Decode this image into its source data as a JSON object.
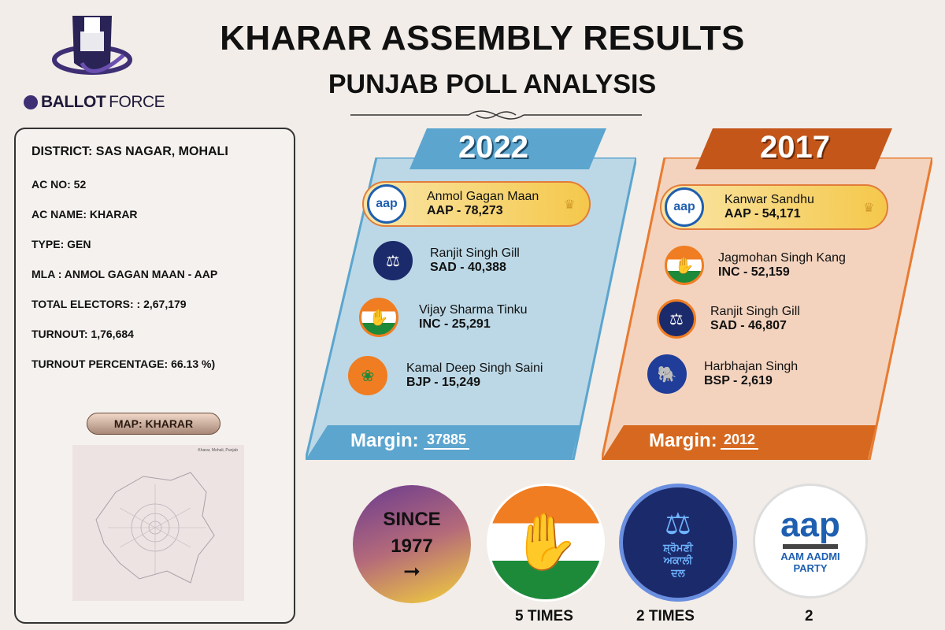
{
  "header": {
    "title": "KHARAR ASSEMBLY RESULTS",
    "subtitle": "PUNJAB POLL ANALYSIS",
    "brand_bold": "BALLOT",
    "brand_light": "FORCE"
  },
  "info": {
    "district": "DISTRICT: SAS NAGAR, MOHALI",
    "ac_no": "AC NO: 52",
    "ac_name": "AC NAME:  KHARAR",
    "type": "TYPE: GEN",
    "mla": "MLA : ANMOL GAGAN MAAN - AAP",
    "electors": "TOTAL ELECTORS: : 2,67,179",
    "turnout": "TURNOUT: 1,76,684",
    "turnout_pct": "TURNOUT PERCENTAGE:  66.13 %)",
    "map_label": "MAP: KHARAR",
    "map_caption": "Kharar, Mohali, Punjab"
  },
  "year2022": {
    "year": "2022",
    "margin_label": "Margin:",
    "margin_value": "37885",
    "candidates": [
      {
        "name": "Anmol Gagan Maan",
        "votes": "AAP - 78,273",
        "party": "aap-logo"
      },
      {
        "name": "Ranjit Singh Gill",
        "votes": "SAD - 40,388",
        "party": "sad-logo"
      },
      {
        "name": "Vijay Sharma Tinku",
        "votes": "INC - 25,291",
        "party": "inc-logo"
      },
      {
        "name": "Kamal Deep Singh Saini",
        "votes": "BJP - 15,249",
        "party": "bjp-logo"
      }
    ]
  },
  "year2017": {
    "year": "2017",
    "margin_label": "Margin:",
    "margin_value": "2012",
    "candidates": [
      {
        "name": "Kanwar Sandhu",
        "votes": "AAP - 54,171",
        "party": "aap-logo"
      },
      {
        "name": "Jagmohan Singh Kang",
        "votes": "INC - 52,159",
        "party": "inc-logo"
      },
      {
        "name": "Ranjit Singh Gill",
        "votes": "SAD - 46,807",
        "party": "sad-logo"
      },
      {
        "name": "Harbhajan Singh",
        "votes": "BSP - 2,619",
        "party": "bsp-logo"
      }
    ]
  },
  "history": {
    "since_line1": "SINCE",
    "since_line2": "1977",
    "arrow": "➞",
    "inc_times": "5 TIMES",
    "sad_times": "2 TIMES",
    "aap_times": "2",
    "aap_logo_text": "aap",
    "aap_logo_sub1": "AAM AADMI",
    "aap_logo_sub2": "PARTY",
    "sad_logo_text1": "ਸ਼੍ਰੋਮਣੀ",
    "sad_logo_text2": "ਅਕਾਲੀ",
    "sad_logo_text3": "ਦਲ",
    "small_aap": "aap",
    "small_aap_sub": "AAM AADMI\nPARTY"
  },
  "colors": {
    "panel2022": "#bcd8e6",
    "panel2022_border": "#5ba5cf",
    "panel2017": "#f3d3be",
    "panel2017_border": "#e97b31",
    "aap_blue": "#1f5fb0",
    "inc_saffron": "#f07d22",
    "inc_green": "#1d8a3a",
    "sad_navy": "#1b2a6a"
  }
}
